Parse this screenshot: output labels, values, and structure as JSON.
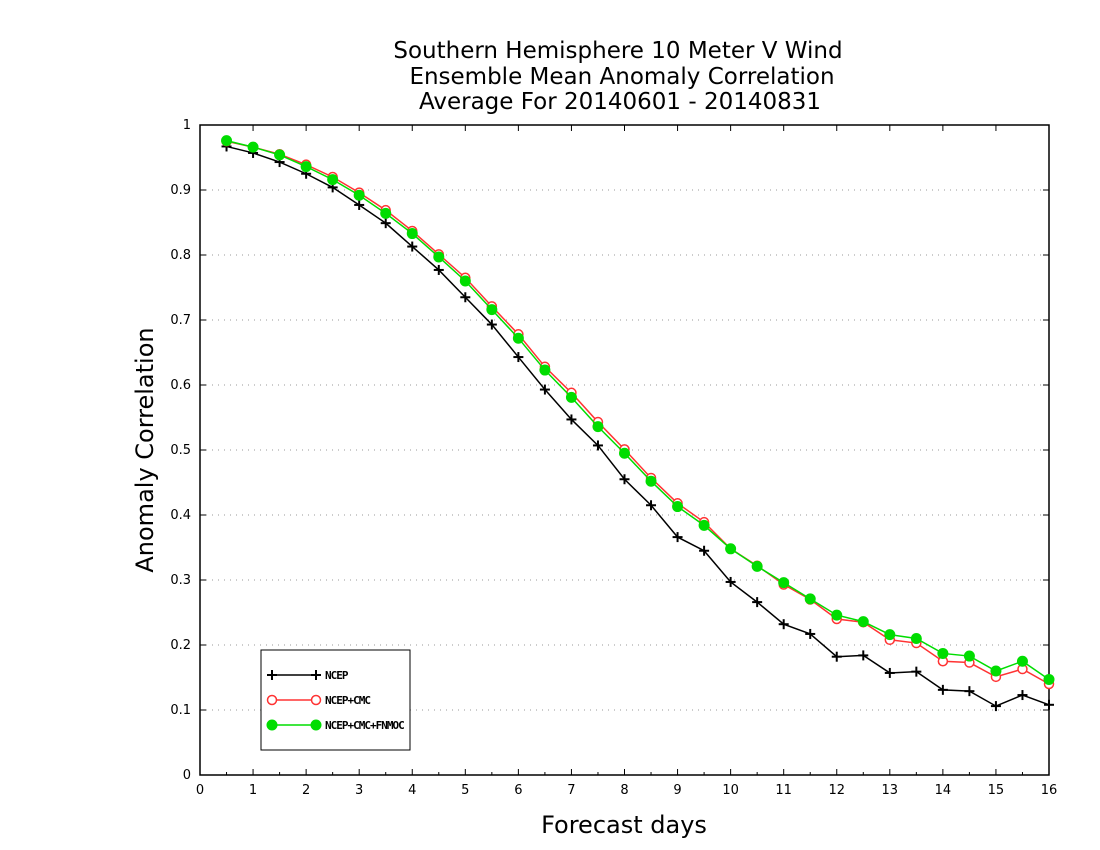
{
  "chart_data": {
    "type": "line",
    "title_lines": [
      "Southern Hemisphere 10 Meter V Wind",
      "Ensemble Mean Anomaly Correlation",
      "Average For 20140601 - 20140831"
    ],
    "xlabel": "Forecast days",
    "ylabel": "Anomaly Correlation",
    "xlim": [
      0,
      16
    ],
    "ylim": [
      0,
      1
    ],
    "xticks": [
      "0",
      "1",
      "2",
      "3",
      "4",
      "5",
      "6",
      "7",
      "8",
      "9",
      "10",
      "11",
      "12",
      "13",
      "14",
      "15",
      "16"
    ],
    "yticks": [
      "0",
      "0.1",
      "0.2",
      "0.3",
      "0.4",
      "0.5",
      "0.6",
      "0.7",
      "0.8",
      "0.9",
      "1"
    ],
    "grid": "dotted horizontal",
    "legend_placement": "bottom-left",
    "x": [
      0.5,
      1,
      1.5,
      2,
      2.5,
      3,
      3.5,
      4,
      4.5,
      5,
      5.5,
      6,
      6.5,
      7,
      7.5,
      8,
      8.5,
      9,
      9.5,
      10,
      10.5,
      11,
      11.5,
      12,
      12.5,
      13,
      13.5,
      14,
      14.5,
      15,
      15.5,
      16
    ],
    "series": [
      {
        "name": "NCEP",
        "color": "#000000",
        "marker": "plus",
        "values": [
          0.967,
          0.957,
          0.943,
          0.925,
          0.904,
          0.877,
          0.849,
          0.813,
          0.777,
          0.735,
          0.693,
          0.643,
          0.593,
          0.547,
          0.507,
          0.455,
          0.415,
          0.366,
          0.345,
          0.297,
          0.266,
          0.232,
          0.217,
          0.182,
          0.184,
          0.157,
          0.159,
          0.131,
          0.129,
          0.106,
          0.123,
          0.108
        ]
      },
      {
        "name": "NCEP+CMC",
        "color": "#ff3333",
        "marker": "open-circle",
        "values": [
          0.975,
          0.966,
          0.955,
          0.939,
          0.92,
          0.896,
          0.869,
          0.837,
          0.801,
          0.765,
          0.721,
          0.678,
          0.628,
          0.588,
          0.543,
          0.501,
          0.457,
          0.418,
          0.389,
          0.348,
          0.322,
          0.293,
          0.27,
          0.24,
          0.235,
          0.208,
          0.203,
          0.175,
          0.173,
          0.151,
          0.163,
          0.14
        ]
      },
      {
        "name": "NCEP+CMC+FNMOC",
        "color": "#00dd00",
        "marker": "filled-circle",
        "values": [
          0.976,
          0.966,
          0.954,
          0.936,
          0.916,
          0.892,
          0.864,
          0.833,
          0.797,
          0.76,
          0.716,
          0.672,
          0.623,
          0.581,
          0.536,
          0.495,
          0.452,
          0.413,
          0.384,
          0.348,
          0.321,
          0.296,
          0.271,
          0.246,
          0.236,
          0.216,
          0.21,
          0.187,
          0.183,
          0.16,
          0.175,
          0.147
        ]
      }
    ]
  }
}
